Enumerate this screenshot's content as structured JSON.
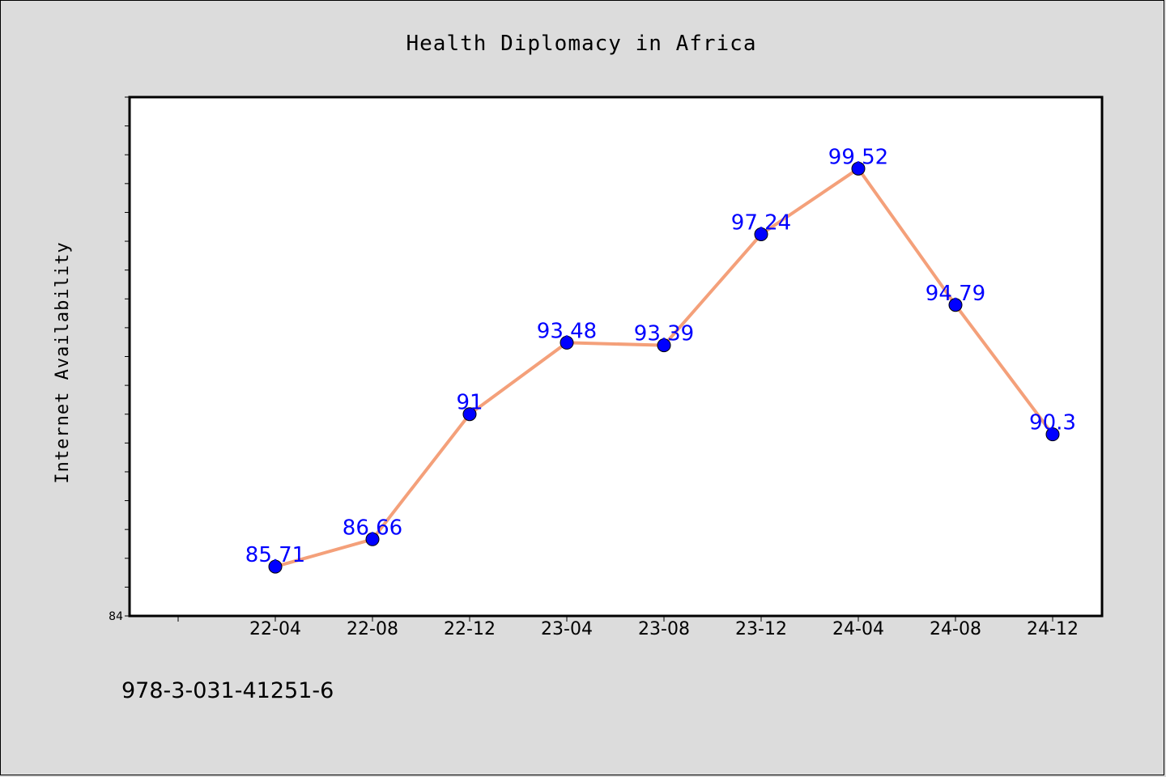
{
  "chart_data": {
    "type": "line",
    "title": "Health Diplomacy in Africa",
    "xlabel": "",
    "ylabel": "Internet Availability",
    "categories": [
      "22-04",
      "22-08",
      "22-12",
      "23-04",
      "23-08",
      "23-12",
      "24-04",
      "24-08",
      "24-12"
    ],
    "series": [
      {
        "values": [
          85.71,
          86.66,
          91,
          93.48,
          93.39,
          97.24,
          99.52,
          94.79,
          90.3
        ],
        "labels": [
          "85.71",
          "86.66",
          "91",
          "93.48",
          "93.39",
          "97.24",
          "99.52",
          "94.79",
          "90.3"
        ],
        "line_color": "#f4a07a",
        "marker_color": "#0000ff"
      }
    ],
    "ylim": [
      84,
      102
    ],
    "yticks_labeled": [
      "84"
    ],
    "grid": false,
    "legend": "none"
  },
  "footer": {
    "isbn": "978-3-031-41251-6"
  },
  "colors": {
    "background": "#dcdcdc",
    "plot_background": "#ffffff",
    "line": "#f4a07a",
    "marker": "#0000ff",
    "data_label": "#0000ff"
  }
}
